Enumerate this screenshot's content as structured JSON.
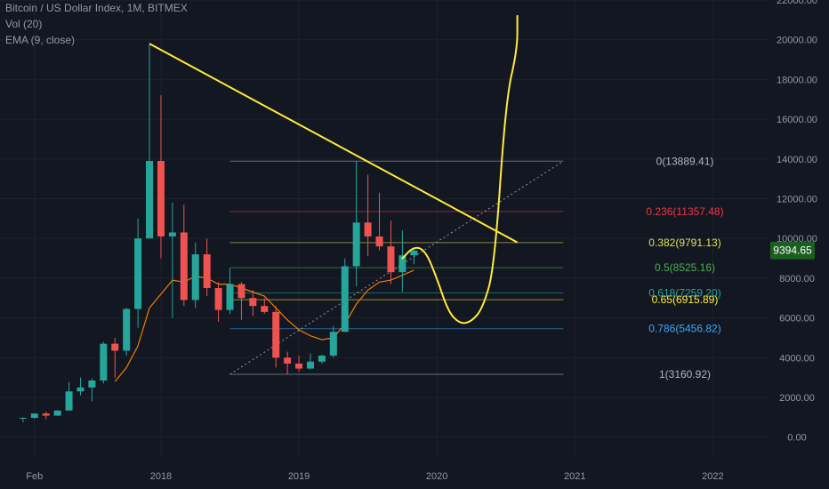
{
  "header": {
    "symbol_title": "Bitcoin / US Dollar Index, 1M, BITMEX",
    "vol_label": "Vol (20)",
    "ema_label": "EMA (9, close)"
  },
  "price_tag": {
    "value": "9394.65",
    "color": "#1b5e20"
  },
  "colors": {
    "background": "#131722",
    "up_candle": "#26a69a",
    "down_candle": "#ef5350",
    "ema": "#f57c00",
    "drawing": "#ffeb3b",
    "axis_text": "#9598a1"
  },
  "chart_data": {
    "type": "candlestick",
    "y_axis": {
      "min": -1000,
      "max": 22000,
      "ticks": [
        "0.00",
        "2000.00",
        "4000.00",
        "6000.00",
        "8000.00",
        "10000.00",
        "12000.00",
        "14000.00",
        "16000.00",
        "18000.00",
        "20000.00",
        "22000.00"
      ]
    },
    "x_axis": {
      "range": [
        "2016-11",
        "2022-06"
      ],
      "ticks": [
        {
          "label": "Feb",
          "date": "2017-02"
        },
        {
          "label": "2018",
          "date": "2018-01"
        },
        {
          "label": "2019",
          "date": "2019-01"
        },
        {
          "label": "2020",
          "date": "2020-01"
        },
        {
          "label": "2021",
          "date": "2021-01"
        },
        {
          "label": "2022",
          "date": "2022-01"
        }
      ]
    },
    "candles": [
      {
        "date": "2017-01",
        "open": 960,
        "high": 1000,
        "low": 750,
        "close": 970
      },
      {
        "date": "2017-02",
        "open": 970,
        "high": 1200,
        "low": 920,
        "close": 1190
      },
      {
        "date": "2017-03",
        "open": 1190,
        "high": 1280,
        "low": 900,
        "close": 1080
      },
      {
        "date": "2017-04",
        "open": 1080,
        "high": 1350,
        "low": 1070,
        "close": 1340
      },
      {
        "date": "2017-05",
        "open": 1340,
        "high": 2770,
        "low": 1330,
        "close": 2300
      },
      {
        "date": "2017-06",
        "open": 2300,
        "high": 3000,
        "low": 2100,
        "close": 2500
      },
      {
        "date": "2017-07",
        "open": 2500,
        "high": 2950,
        "low": 1800,
        "close": 2850
      },
      {
        "date": "2017-08",
        "open": 2850,
        "high": 4800,
        "low": 2700,
        "close": 4700
      },
      {
        "date": "2017-09",
        "open": 4700,
        "high": 5000,
        "low": 2980,
        "close": 4350
      },
      {
        "date": "2017-10",
        "open": 4350,
        "high": 6500,
        "low": 4100,
        "close": 6450
      },
      {
        "date": "2017-11",
        "open": 6450,
        "high": 11000,
        "low": 5500,
        "close": 10000
      },
      {
        "date": "2017-12",
        "open": 10000,
        "high": 19800,
        "low": 10000,
        "close": 13900
      },
      {
        "date": "2018-01",
        "open": 13900,
        "high": 17200,
        "low": 9000,
        "close": 10100
      },
      {
        "date": "2018-02",
        "open": 10100,
        "high": 11800,
        "low": 6000,
        "close": 10300
      },
      {
        "date": "2018-03",
        "open": 10300,
        "high": 11700,
        "low": 6600,
        "close": 6900
      },
      {
        "date": "2018-04",
        "open": 6900,
        "high": 9800,
        "low": 6500,
        "close": 9200
      },
      {
        "date": "2018-05",
        "open": 9200,
        "high": 10000,
        "low": 7100,
        "close": 7500
      },
      {
        "date": "2018-06",
        "open": 7500,
        "high": 7800,
        "low": 5800,
        "close": 6400
      },
      {
        "date": "2018-07",
        "open": 6400,
        "high": 8500,
        "low": 6200,
        "close": 7700
      },
      {
        "date": "2018-08",
        "open": 7700,
        "high": 7800,
        "low": 5900,
        "close": 7000
      },
      {
        "date": "2018-09",
        "open": 7000,
        "high": 7400,
        "low": 6100,
        "close": 6600
      },
      {
        "date": "2018-10",
        "open": 6600,
        "high": 7000,
        "low": 6200,
        "close": 6300
      },
      {
        "date": "2018-11",
        "open": 6300,
        "high": 6600,
        "low": 3500,
        "close": 4000
      },
      {
        "date": "2018-12",
        "open": 4000,
        "high": 4300,
        "low": 3150,
        "close": 3700
      },
      {
        "date": "2019-01",
        "open": 3700,
        "high": 4100,
        "low": 3300,
        "close": 3450
      },
      {
        "date": "2019-02",
        "open": 3450,
        "high": 4200,
        "low": 3400,
        "close": 3800
      },
      {
        "date": "2019-03",
        "open": 3800,
        "high": 4150,
        "low": 3700,
        "close": 4100
      },
      {
        "date": "2019-04",
        "open": 4100,
        "high": 5600,
        "low": 4000,
        "close": 5300
      },
      {
        "date": "2019-05",
        "open": 5300,
        "high": 9000,
        "low": 5300,
        "close": 8600
      },
      {
        "date": "2019-06",
        "open": 8600,
        "high": 13900,
        "low": 7600,
        "close": 10800
      },
      {
        "date": "2019-07",
        "open": 10800,
        "high": 13200,
        "low": 9100,
        "close": 10100
      },
      {
        "date": "2019-08",
        "open": 10100,
        "high": 12300,
        "low": 9400,
        "close": 9600
      },
      {
        "date": "2019-09",
        "open": 9600,
        "high": 10900,
        "low": 7700,
        "close": 8300
      },
      {
        "date": "2019-10",
        "open": 8300,
        "high": 10400,
        "low": 7300,
        "close": 9150
      },
      {
        "date": "2019-11",
        "open": 9150,
        "high": 9500,
        "low": 8700,
        "close": 9395
      }
    ],
    "ema_9": [
      {
        "date": "2017-09",
        "value": 2800
      },
      {
        "date": "2017-10",
        "value": 3500
      },
      {
        "date": "2017-11",
        "value": 4600
      },
      {
        "date": "2017-12",
        "value": 6500
      },
      {
        "date": "2018-01",
        "value": 7200
      },
      {
        "date": "2018-02",
        "value": 7900
      },
      {
        "date": "2018-03",
        "value": 7800
      },
      {
        "date": "2018-04",
        "value": 8100
      },
      {
        "date": "2018-05",
        "value": 8000
      },
      {
        "date": "2018-06",
        "value": 7700
      },
      {
        "date": "2018-07",
        "value": 7700
      },
      {
        "date": "2018-08",
        "value": 7500
      },
      {
        "date": "2018-09",
        "value": 7300
      },
      {
        "date": "2018-10",
        "value": 7100
      },
      {
        "date": "2018-11",
        "value": 6500
      },
      {
        "date": "2018-12",
        "value": 5900
      },
      {
        "date": "2019-01",
        "value": 5400
      },
      {
        "date": "2019-02",
        "value": 5100
      },
      {
        "date": "2019-03",
        "value": 4900
      },
      {
        "date": "2019-04",
        "value": 5000
      },
      {
        "date": "2019-05",
        "value": 5700
      },
      {
        "date": "2019-06",
        "value": 6700
      },
      {
        "date": "2019-07",
        "value": 7400
      },
      {
        "date": "2019-08",
        "value": 7800
      },
      {
        "date": "2019-09",
        "value": 7900
      },
      {
        "date": "2019-10",
        "value": 8150
      },
      {
        "date": "2019-11",
        "value": 8400
      }
    ],
    "fib_levels": [
      {
        "label": "0(13889.41)",
        "price": 13889.41,
        "color": "#b2b5be"
      },
      {
        "label": "0.236(11357.48)",
        "price": 11357.48,
        "color": "#f23645"
      },
      {
        "label": "0.382(9791.13)",
        "price": 9791.13,
        "color": "#e0e05a"
      },
      {
        "label": "0.5(8525.16)",
        "price": 8525.16,
        "color": "#4caf50"
      },
      {
        "label": "0.618(7259.20)",
        "price": 7259.2,
        "color": "#26a69a"
      },
      {
        "label": "0.65(6915.89)",
        "price": 6915.89,
        "color": "#ffeb3b"
      },
      {
        "label": "0.786(5456.82)",
        "price": 5456.82,
        "color": "#42a5f5"
      },
      {
        "label": "1(3160.92)",
        "price": 3160.92,
        "color": "#b2b5be"
      }
    ],
    "fib_start_date": "2018-07",
    "fib_end_date": "2020-12",
    "fib_trend_line": [
      {
        "date": "2018-07",
        "price": 3160.92
      },
      {
        "date": "2020-12",
        "price": 13889.41
      }
    ],
    "trend_line": [
      {
        "date": "2017-12",
        "price": 19800
      },
      {
        "date": "2020-08",
        "price": 9800
      }
    ],
    "projection_path": [
      {
        "date": "2019-10",
        "price": 9000
      },
      {
        "date": "2019-11",
        "price": 9600
      },
      {
        "date": "2019-12",
        "price": 9400
      },
      {
        "date": "2020-01",
        "price": 8000
      },
      {
        "date": "2020-02",
        "price": 6300
      },
      {
        "date": "2020-03",
        "price": 5700
      },
      {
        "date": "2020-04",
        "price": 5800
      },
      {
        "date": "2020-05",
        "price": 6500
      },
      {
        "date": "2020-06",
        "price": 8500
      },
      {
        "date": "2020-07",
        "price": 17000
      },
      {
        "date": "2020-08",
        "price": 19500
      },
      {
        "date": "2020-08",
        "price": 21200
      }
    ]
  }
}
